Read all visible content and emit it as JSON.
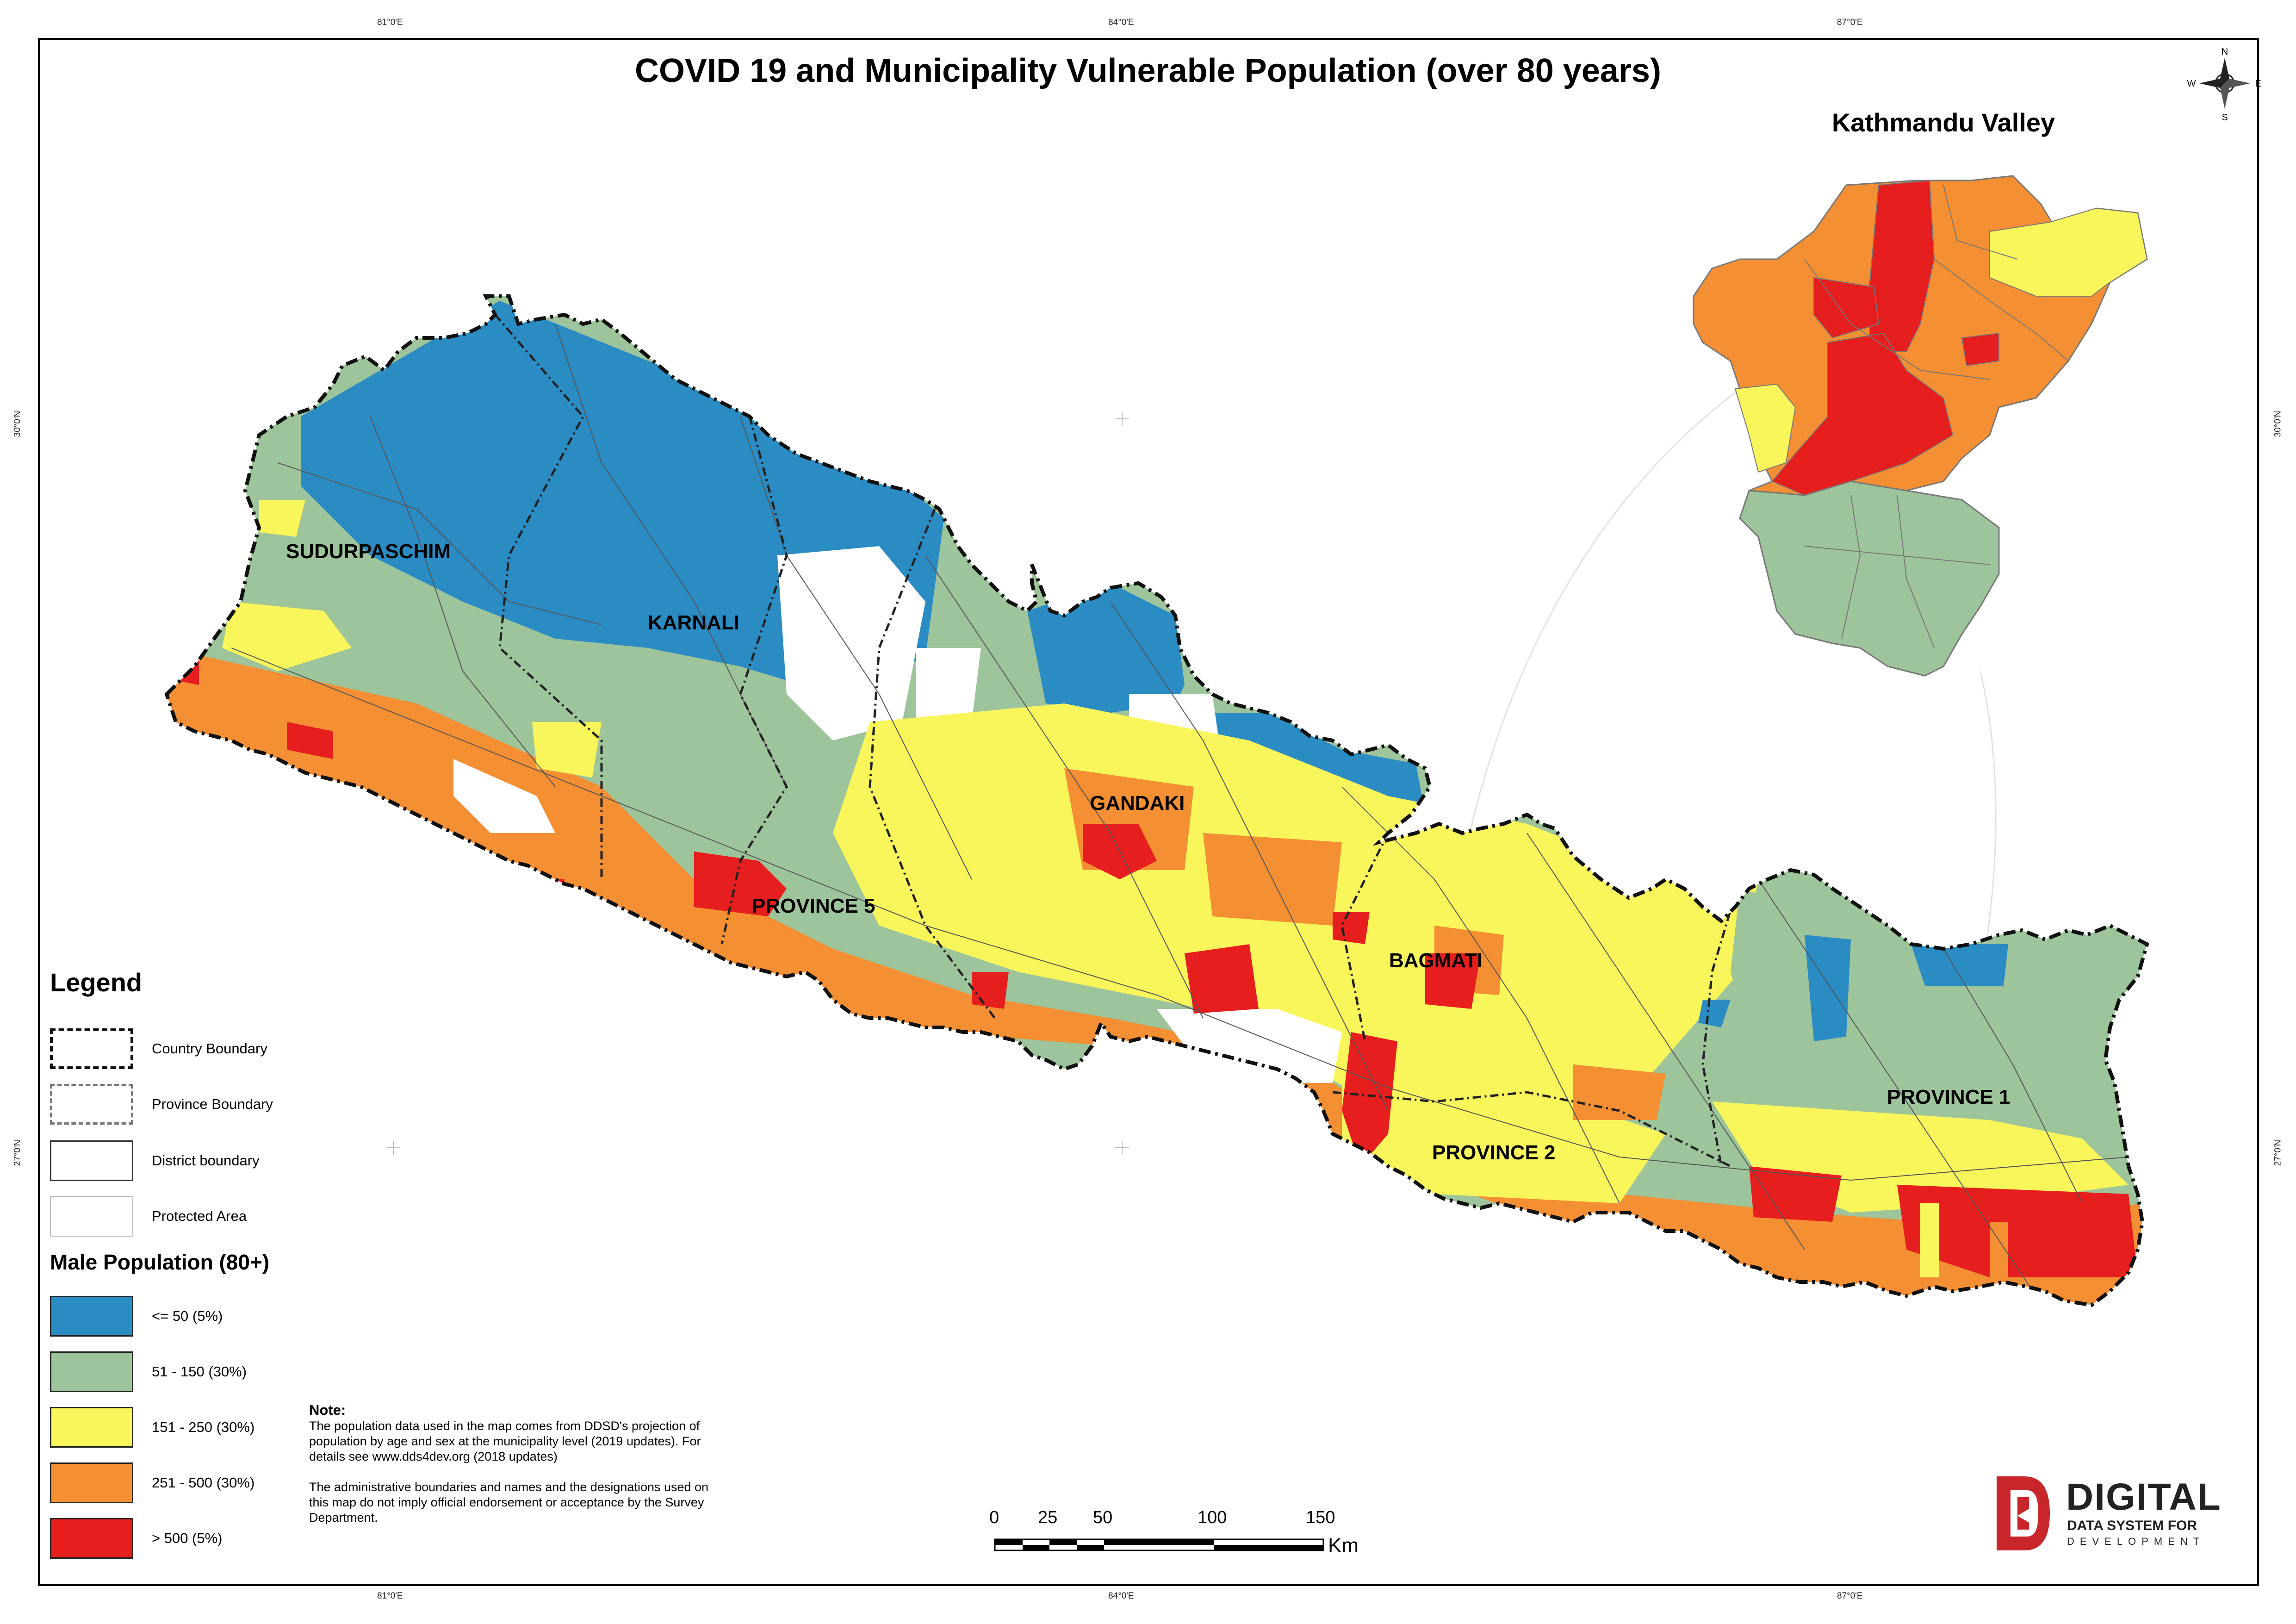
{
  "title": "COVID 19 and Municipality Vulnerable Population (over 80 years)",
  "inset_title": "Kathmandu Valley",
  "graticule": {
    "longitudes": [
      "81°0'E",
      "84°0'E",
      "87°0'E"
    ],
    "latitudes": [
      "30°0'N",
      "27°0'N"
    ]
  },
  "north_arrow": {
    "n": "N",
    "s": "S",
    "e": "E",
    "w": "W"
  },
  "provinces": [
    "SUDURPASCHIM",
    "KARNALI",
    "GANDAKI",
    "PROVINCE 5",
    "BAGMATI",
    "PROVINCE 2",
    "PROVINCE 1"
  ],
  "legend": {
    "title": "Legend",
    "boundaries": [
      {
        "label": "Country Boundary"
      },
      {
        "label": "Province Boundary"
      },
      {
        "label": "District boundary"
      },
      {
        "label": "Protected Area"
      }
    ],
    "classes_title": "Male Population (80+)",
    "classes": [
      {
        "label": "<= 50 (5%)",
        "color": "#2b8cc4"
      },
      {
        "label": "51 - 150 (30%)",
        "color": "#9dc49a"
      },
      {
        "label": "151 - 250 (30%)",
        "color": "#f9f65c"
      },
      {
        "label": "251 - 500 (30%)",
        "color": "#f58f33"
      },
      {
        "label": "> 500 (5%)",
        "color": "#e61e1e"
      }
    ]
  },
  "note": {
    "heading": "Note:",
    "p1": "The population data used in the map comes from DDSD's projection of population by age and sex at the municipality level (2019 updates). For details see www.dds4dev.org (2018 updates)",
    "p2": "The administrative boundaries and names and the designations used on this map do not imply official endorsement or acceptance by the Survey Department."
  },
  "scale_bar": {
    "ticks": [
      "0",
      "25",
      "50",
      "100",
      "150"
    ],
    "unit": "Km"
  },
  "logo": {
    "main": "DIGITAL",
    "sub1": "DATA SYSTEM FOR",
    "sub2": "DEVELOPMENT"
  }
}
